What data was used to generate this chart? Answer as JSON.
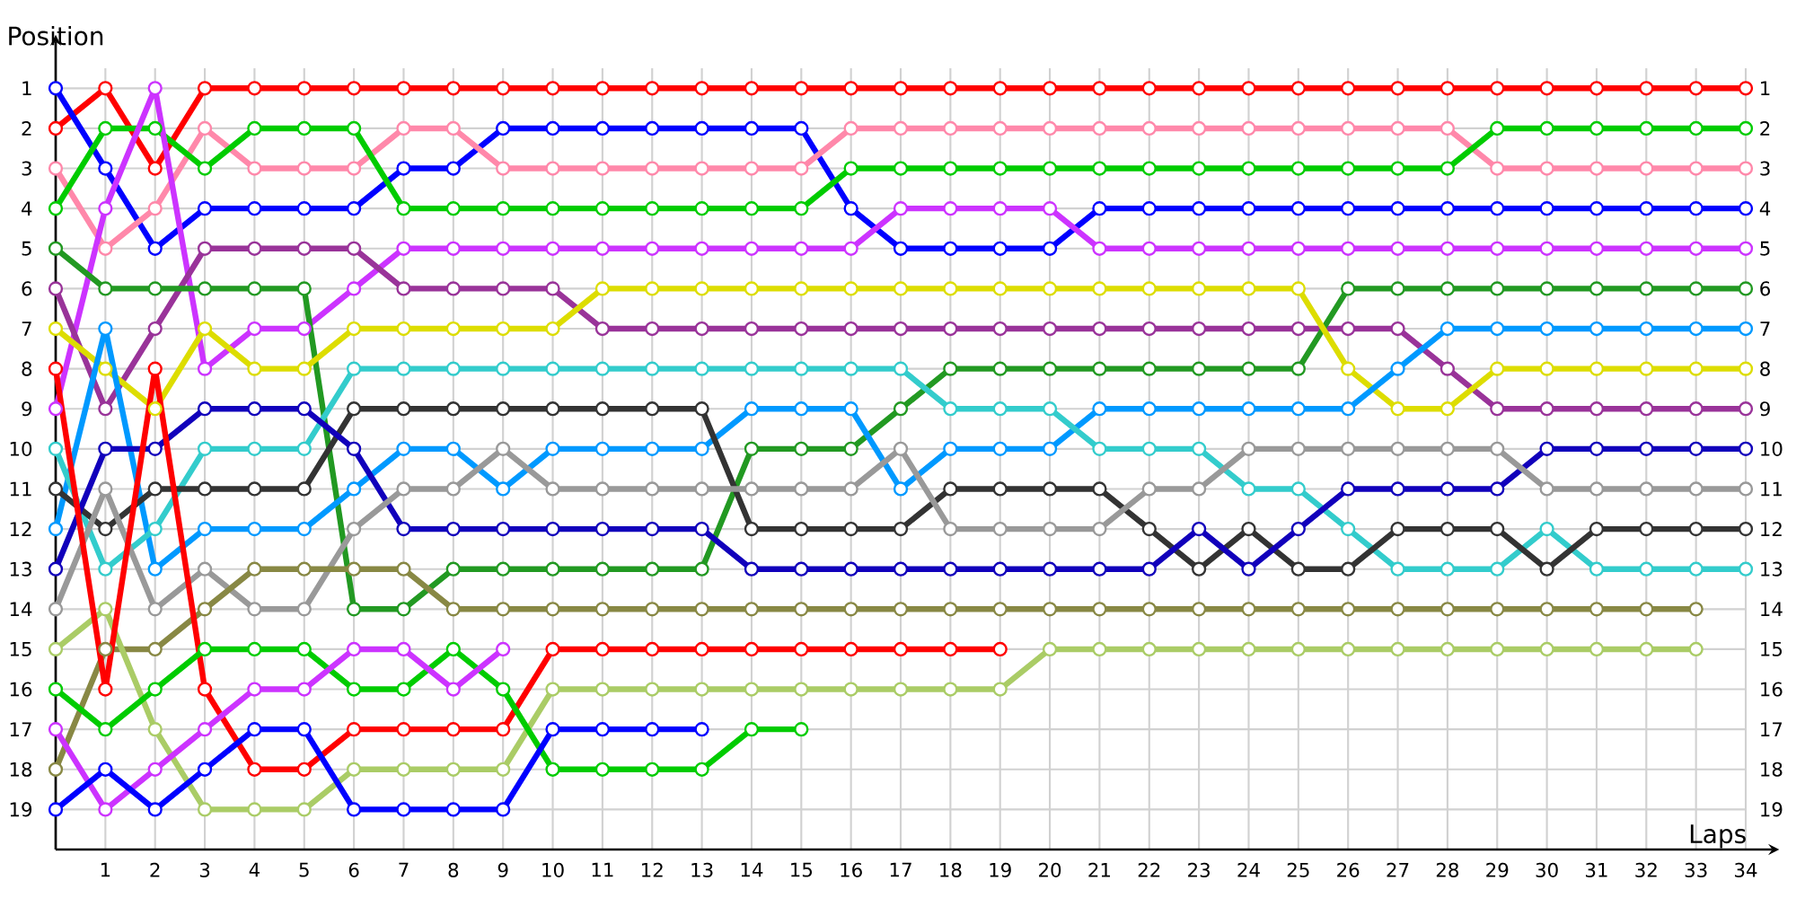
{
  "chart_data": {
    "type": "line",
    "xlabel": "Laps",
    "ylabel": "Position",
    "x": [
      0,
      1,
      2,
      3,
      4,
      5,
      6,
      7,
      8,
      9,
      10,
      11,
      12,
      13,
      14,
      15,
      16,
      17,
      18,
      19,
      20,
      21,
      22,
      23,
      24,
      25,
      26,
      27,
      28,
      29,
      30,
      31,
      32,
      33,
      34
    ],
    "xlim": [
      0,
      34
    ],
    "xticks": [
      1,
      2,
      3,
      4,
      5,
      6,
      7,
      8,
      9,
      10,
      11,
      12,
      13,
      14,
      15,
      16,
      17,
      18,
      19,
      20,
      21,
      22,
      23,
      24,
      25,
      26,
      27,
      28,
      29,
      30,
      31,
      32,
      33,
      34
    ],
    "ylim": [
      20,
      0.5
    ],
    "yticks": [
      1,
      2,
      3,
      4,
      5,
      6,
      7,
      8,
      9,
      10,
      11,
      12,
      13,
      14,
      15,
      16,
      17,
      18,
      19
    ],
    "y2lim": [
      20,
      0.5
    ],
    "y2ticks": [
      1,
      2,
      3,
      4,
      5,
      6,
      7,
      8,
      9,
      10,
      11,
      12,
      13,
      14,
      15,
      16,
      17,
      18,
      19
    ],
    "grid": true,
    "marker": "circle",
    "line_style": "solid",
    "series": [
      {
        "color": "#ff0000",
        "values": [
          2,
          1,
          3,
          1,
          1,
          1,
          1,
          1,
          1,
          1,
          1,
          1,
          1,
          1,
          1,
          1,
          1,
          1,
          1,
          1,
          1,
          1,
          1,
          1,
          1,
          1,
          1,
          1,
          1,
          1,
          1,
          1,
          1,
          1,
          1
        ]
      },
      {
        "color": "#0000ff",
        "values": [
          1,
          3,
          5,
          4,
          4,
          4,
          4,
          3,
          3,
          2,
          2,
          2,
          2,
          2,
          2,
          2,
          4,
          5,
          5,
          5,
          5,
          4,
          4,
          4,
          4,
          4,
          4,
          4,
          4,
          4,
          4,
          4,
          4,
          4,
          4
        ]
      },
      {
        "color": "#ff88aa",
        "values": [
          3,
          5,
          4,
          2,
          3,
          3,
          3,
          2,
          2,
          3,
          3,
          3,
          3,
          3,
          3,
          3,
          2,
          2,
          2,
          2,
          2,
          2,
          2,
          2,
          2,
          2,
          2,
          2,
          2,
          3,
          3,
          3,
          3,
          3,
          3
        ]
      },
      {
        "color": "#00cc00",
        "values": [
          4,
          2,
          2,
          3,
          2,
          2,
          2,
          4,
          4,
          4,
          4,
          4,
          4,
          4,
          4,
          4,
          3,
          3,
          3,
          3,
          3,
          3,
          3,
          3,
          3,
          3,
          3,
          3,
          3,
          2,
          2,
          2,
          2,
          2,
          2
        ]
      },
      {
        "color": "#cc33ff",
        "values": [
          9,
          4,
          1,
          8,
          7,
          7,
          6,
          5,
          5,
          5,
          5,
          5,
          5,
          5,
          5,
          5,
          5,
          4,
          4,
          4,
          4,
          5,
          5,
          5,
          5,
          5,
          5,
          5,
          5,
          5,
          5,
          5,
          5,
          5,
          5
        ]
      },
      {
        "color": "#993399",
        "values": [
          6,
          9,
          7,
          5,
          5,
          5,
          5,
          6,
          6,
          6,
          6,
          7,
          7,
          7,
          7,
          7,
          7,
          7,
          7,
          7,
          7,
          7,
          7,
          7,
          7,
          7,
          7,
          7,
          8,
          9,
          9,
          9,
          9,
          9,
          9
        ]
      },
      {
        "color": "#229922",
        "values": [
          5,
          6,
          6,
          6,
          6,
          6,
          14,
          14,
          13,
          13,
          13,
          13,
          13,
          13,
          10,
          10,
          10,
          9,
          8,
          8,
          8,
          8,
          8,
          8,
          8,
          8,
          6,
          6,
          6,
          6,
          6,
          6,
          6,
          6,
          6
        ]
      },
      {
        "color": "#dddd00",
        "values": [
          7,
          8,
          9,
          7,
          8,
          8,
          7,
          7,
          7,
          7,
          7,
          6,
          6,
          6,
          6,
          6,
          6,
          6,
          6,
          6,
          6,
          6,
          6,
          6,
          6,
          6,
          8,
          9,
          9,
          8,
          8,
          8,
          8,
          8,
          8
        ]
      },
      {
        "color": "#0099ff",
        "values": [
          12,
          7,
          13,
          12,
          12,
          12,
          11,
          10,
          10,
          11,
          10,
          10,
          10,
          10,
          9,
          9,
          9,
          11,
          10,
          10,
          10,
          9,
          9,
          9,
          9,
          9,
          9,
          8,
          7,
          7,
          7,
          7,
          7,
          7,
          7
        ]
      },
      {
        "color": "#33cccc",
        "values": [
          10,
          13,
          12,
          10,
          10,
          10,
          8,
          8,
          8,
          8,
          8,
          8,
          8,
          8,
          8,
          8,
          8,
          8,
          9,
          9,
          9,
          10,
          10,
          10,
          11,
          11,
          12,
          13,
          13,
          13,
          12,
          13,
          13,
          13,
          13
        ]
      },
      {
        "color": "#333333",
        "values": [
          11,
          12,
          11,
          11,
          11,
          11,
          9,
          9,
          9,
          9,
          9,
          9,
          9,
          9,
          12,
          12,
          12,
          12,
          11,
          11,
          11,
          11,
          12,
          13,
          12,
          13,
          13,
          12,
          12,
          12,
          13,
          12,
          12,
          12,
          12
        ]
      },
      {
        "color": "#1100bb",
        "values": [
          13,
          10,
          10,
          9,
          9,
          9,
          10,
          12,
          12,
          12,
          12,
          12,
          12,
          12,
          13,
          13,
          13,
          13,
          13,
          13,
          13,
          13,
          13,
          12,
          13,
          12,
          11,
          11,
          11,
          11,
          10,
          10,
          10,
          10,
          10
        ]
      },
      {
        "color": "#999999",
        "values": [
          14,
          11,
          14,
          13,
          14,
          14,
          12,
          11,
          11,
          10,
          11,
          11,
          11,
          11,
          11,
          11,
          11,
          10,
          12,
          12,
          12,
          12,
          11,
          11,
          10,
          10,
          10,
          10,
          10,
          10,
          11,
          11,
          11,
          11,
          11
        ]
      },
      {
        "color": "#888844",
        "values": [
          18,
          15,
          15,
          14,
          13,
          13,
          13,
          13,
          14,
          14,
          14,
          14,
          14,
          14,
          14,
          14,
          14,
          14,
          14,
          14,
          14,
          14,
          14,
          14,
          14,
          14,
          14,
          14,
          14,
          14,
          14,
          14,
          14,
          14,
          null
        ]
      },
      {
        "color": "#aacc66",
        "values": [
          15,
          14,
          17,
          19,
          19,
          19,
          18,
          18,
          18,
          18,
          16,
          16,
          16,
          16,
          16,
          16,
          16,
          16,
          16,
          16,
          15,
          15,
          15,
          15,
          15,
          15,
          15,
          15,
          15,
          15,
          15,
          15,
          15,
          15,
          null
        ]
      },
      {
        "color": "#ff0000",
        "values": [
          8,
          16,
          8,
          16,
          18,
          18,
          17,
          17,
          17,
          17,
          15,
          15,
          15,
          15,
          15,
          15,
          15,
          15,
          15,
          15,
          null,
          null,
          null,
          null,
          null,
          null,
          null,
          null,
          null,
          null,
          null,
          null,
          null,
          null,
          null
        ]
      },
      {
        "color": "#00cc00",
        "values": [
          16,
          17,
          16,
          15,
          15,
          15,
          16,
          16,
          15,
          16,
          18,
          18,
          18,
          18,
          17,
          17,
          null,
          null,
          null,
          null,
          null,
          null,
          null,
          null,
          null,
          null,
          null,
          null,
          null,
          null,
          null,
          null,
          null,
          null,
          null
        ]
      },
      {
        "color": "#cc33ff",
        "values": [
          17,
          19,
          18,
          17,
          16,
          16,
          15,
          15,
          16,
          15,
          null,
          null,
          null,
          null,
          null,
          null,
          null,
          null,
          null,
          null,
          null,
          null,
          null,
          null,
          null,
          null,
          null,
          null,
          null,
          null,
          null,
          null,
          null,
          null,
          null
        ]
      },
      {
        "color": "#0000ff",
        "values": [
          19,
          18,
          19,
          18,
          17,
          17,
          19,
          19,
          19,
          19,
          17,
          17,
          17,
          17,
          null,
          null,
          null,
          null,
          null,
          null,
          null,
          null,
          null,
          null,
          null,
          null,
          null,
          null,
          null,
          null,
          null,
          null,
          null,
          null,
          null
        ]
      }
    ]
  }
}
